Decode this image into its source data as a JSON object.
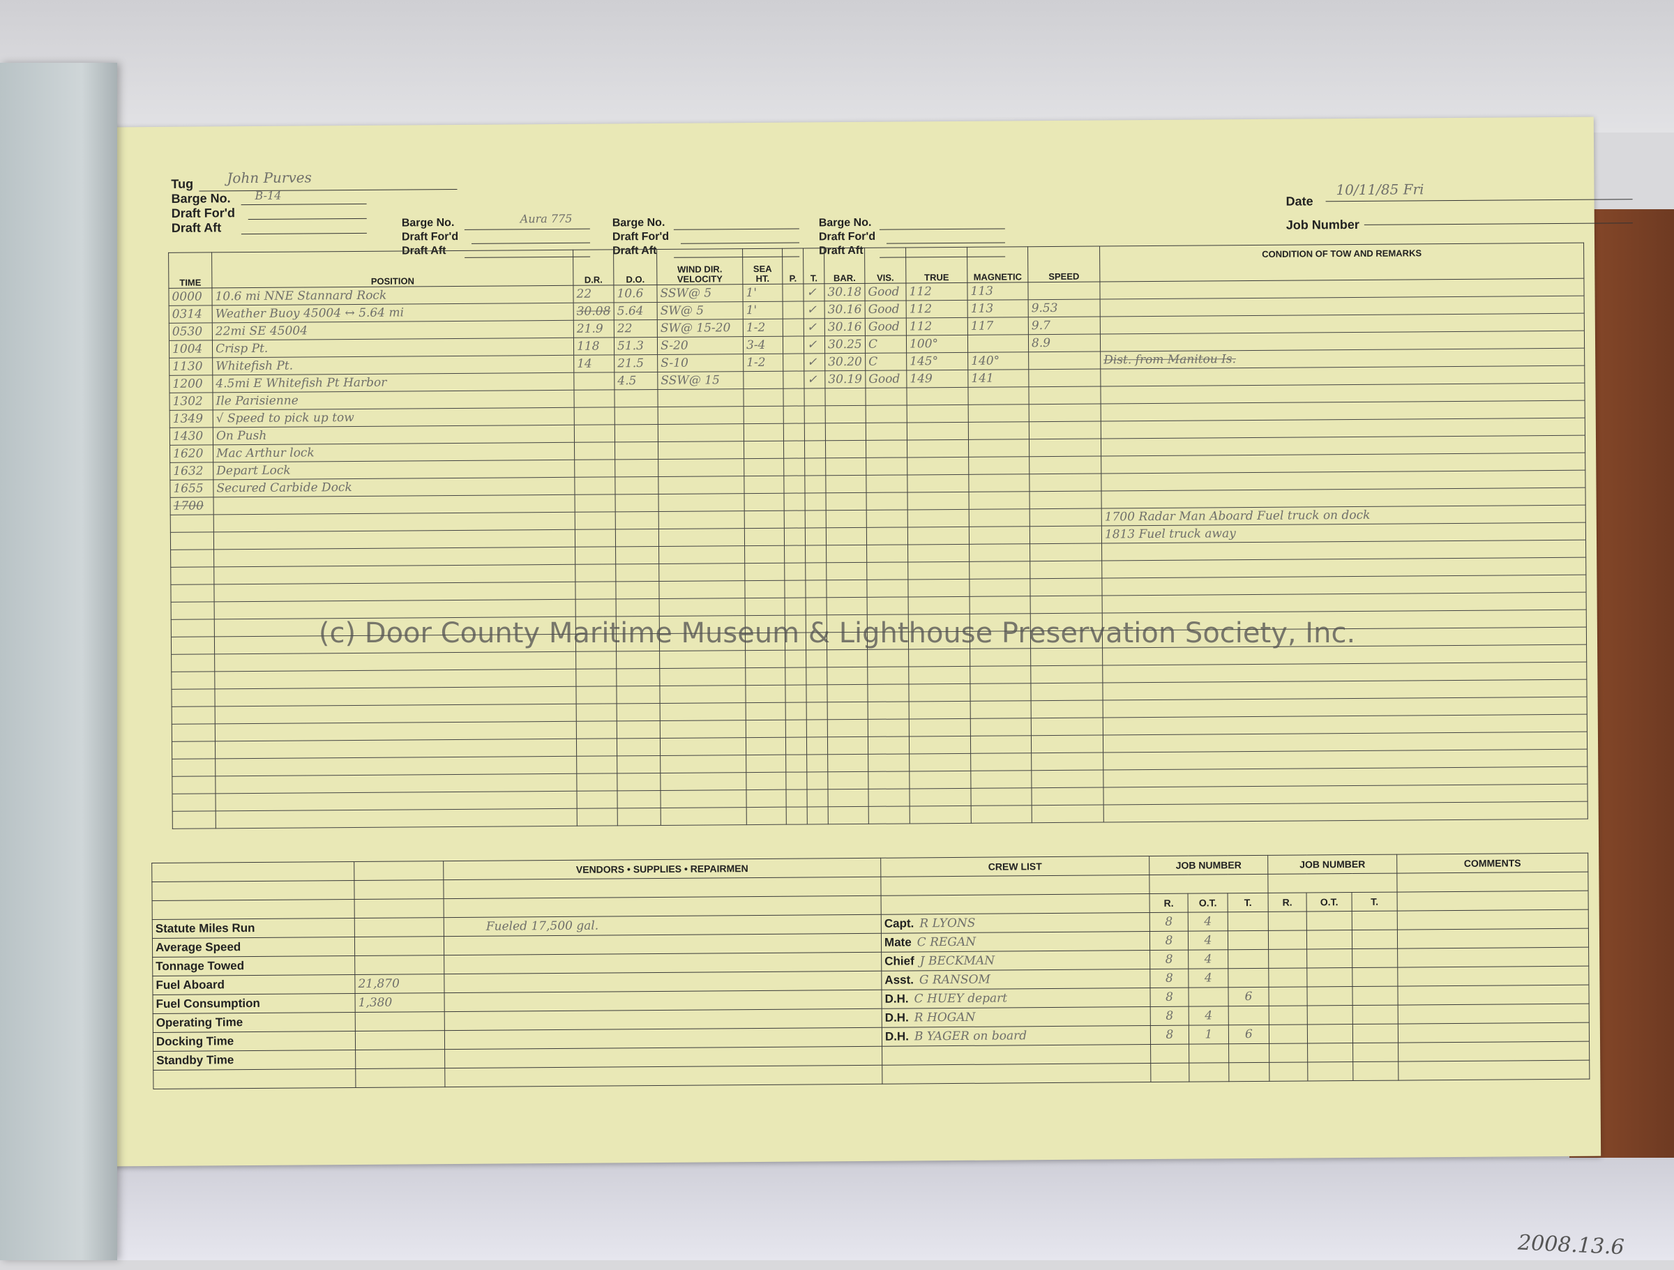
{
  "header": {
    "tug_label": "Tug",
    "tug": "John Purves",
    "barge_label": "Barge No.",
    "barge": "B-14",
    "draft_ford_label": "Draft For'd",
    "draft_aft_label": "Draft Aft",
    "barges": [
      {
        "barge": "Aura 775"
      },
      {
        "barge": ""
      },
      {
        "barge": ""
      }
    ],
    "date_label": "Date",
    "date": "10/11/85 Fri",
    "job_number_label": "Job Number"
  },
  "log": {
    "columns": {
      "time": "TIME",
      "position": "POSITION",
      "dr": "D.R.",
      "do": "D.O.",
      "wind": "WIND DIR. VELOCITY",
      "sea": "SEA HT.",
      "p": "P.",
      "t": "T.",
      "bar": "BAR.",
      "vis": "VIS.",
      "true": "TRUE",
      "magnetic": "MAGNETIC",
      "speed": "SPEED",
      "remarks": "CONDITION OF TOW AND REMARKS"
    },
    "rows": [
      {
        "time": "0000",
        "position": "10.6 mi NNE Stannard Rock",
        "dr": "22",
        "do": "10.6",
        "wind": "SSW@ 5",
        "sea": "1'",
        "p": "",
        "t": "✓",
        "bar": "30.18",
        "vis": "Good",
        "true": "112",
        "magnetic": "113",
        "speed": ""
      },
      {
        "time": "0314",
        "position": "Weather Buoy 45004 ↔ 5.64 mi",
        "dr": "30.08",
        "do": "5.64",
        "wind": "SW@ 5",
        "sea": "1'",
        "p": "",
        "t": "✓",
        "bar": "30.16",
        "vis": "Good",
        "true": "112",
        "magnetic": "113",
        "speed": "9.53"
      },
      {
        "time": "0530",
        "position": "22mi SE 45004",
        "dr": "21.9",
        "do": "22",
        "wind": "SW@ 15-20",
        "sea": "1-2",
        "p": "",
        "t": "✓",
        "bar": "30.16",
        "vis": "Good",
        "true": "112",
        "magnetic": "117",
        "speed": "9.7"
      },
      {
        "time": "1004",
        "position": "Crisp Pt.",
        "dr": "118",
        "do": "51.3",
        "wind": "S-20",
        "sea": "3-4",
        "p": "",
        "t": "✓",
        "bar": "30.25",
        "vis": "C",
        "true": "100°",
        "magnetic": "",
        "speed": "8.9"
      },
      {
        "time": "1130",
        "position": "Whitefish Pt.",
        "dr": "14",
        "do": "21.5",
        "wind": "S-10",
        "sea": "1-2",
        "p": "",
        "t": "✓",
        "bar": "30.20",
        "vis": "C",
        "true": "145°",
        "magnetic": "140°",
        "speed": ""
      },
      {
        "time": "1200",
        "position": "4.5mi E Whitefish Pt Harbor",
        "dr": "",
        "do": "4.5",
        "wind": "SSW@ 15",
        "sea": "",
        "p": "",
        "t": "✓",
        "bar": "30.19",
        "vis": "Good",
        "true": "149",
        "magnetic": "141",
        "speed": ""
      },
      {
        "time": "1302",
        "position": "Ile Parisienne"
      },
      {
        "time": "1349",
        "position": "√ Speed to pick up tow"
      },
      {
        "time": "1430",
        "position": "On Push"
      },
      {
        "time": "1620",
        "position": "Mac Arthur lock"
      },
      {
        "time": "1632",
        "position": "Depart Lock"
      },
      {
        "time": "1655",
        "position": "Secured Carbide Dock"
      },
      {
        "time": "1700",
        "position": ""
      }
    ],
    "remarks": [
      "Dist. from Manitou Is.",
      "1700 Radar Man Aboard    Fuel truck on dock",
      "1813 Fuel truck away"
    ]
  },
  "summary": {
    "items": [
      {
        "label": "Statute Miles Run",
        "value": ""
      },
      {
        "label": "Average Speed",
        "value": ""
      },
      {
        "label": "Tonnage Towed",
        "value": ""
      },
      {
        "label": "Fuel Aboard",
        "value": "21,870"
      },
      {
        "label": "Fuel Consumption",
        "value": "1,380"
      },
      {
        "label": "Operating Time",
        "value": ""
      },
      {
        "label": "Docking Time",
        "value": ""
      },
      {
        "label": "Standby Time",
        "value": ""
      }
    ],
    "vendors_label": "VENDORS • SUPPLIES • REPAIRMEN",
    "vendors": [
      "Fueled    17,500 gal."
    ],
    "crew_label": "CREW LIST",
    "job_number_label": "JOB NUMBER",
    "job_cols": [
      "R.",
      "O.T.",
      "T."
    ],
    "comments_label": "COMMENTS",
    "crew": [
      {
        "role": "Capt.",
        "name": "R LYONS",
        "r": "8",
        "ot": "4",
        "t": ""
      },
      {
        "role": "Mate",
        "name": "C REGAN",
        "r": "8",
        "ot": "4",
        "t": ""
      },
      {
        "role": "Chief",
        "name": "J BECKMAN",
        "r": "8",
        "ot": "4",
        "t": ""
      },
      {
        "role": "Asst.",
        "name": "G RANSOM",
        "r": "8",
        "ot": "4",
        "t": ""
      },
      {
        "role": "D.H.",
        "name": "C HUEY    depart",
        "r": "8",
        "ot": "",
        "t": "6"
      },
      {
        "role": "D.H.",
        "name": "R HOGAN",
        "r": "8",
        "ot": "4",
        "t": ""
      },
      {
        "role": "D.H.",
        "name": "B YAGER   on board",
        "r": "8",
        "ot": "1",
        "t": "6"
      }
    ]
  },
  "watermark": "(c) Door County Maritime Museum & Lighthouse Preservation Society, Inc.",
  "catalog_number": "2008.13.6",
  "colors": {
    "paper": "#e9e8b6",
    "ink": "#222222",
    "pencil": "#6f6f6a",
    "wood": "#7a4126"
  }
}
